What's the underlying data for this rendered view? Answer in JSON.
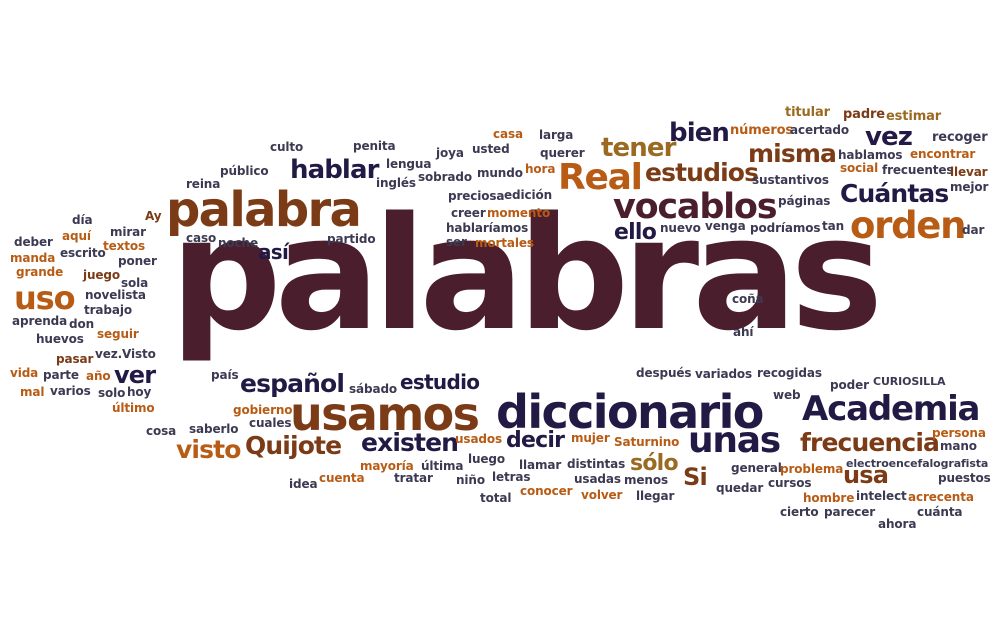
{
  "word_cloud": {
    "words": [
      {
        "text": "palabras",
        "color": "#4a1e2c"
      },
      {
        "text": "palabra",
        "color": "#7b3b16"
      },
      {
        "text": "usamos",
        "color": "#7b3b16"
      },
      {
        "text": "diccionario",
        "color": "#221a45"
      },
      {
        "text": "Academia",
        "color": "#221a45"
      },
      {
        "text": "vocablos",
        "color": "#4a1e2c"
      },
      {
        "text": "Real",
        "color": "#b85b14"
      },
      {
        "text": "orden",
        "color": "#b85b14"
      },
      {
        "text": "unas",
        "color": "#221a45"
      },
      {
        "text": "uso",
        "color": "#b85b14"
      },
      {
        "text": "hablar",
        "color": "#221a45"
      },
      {
        "text": "misma",
        "color": "#7b3b16"
      },
      {
        "text": "estudios",
        "color": "#7b3b16"
      },
      {
        "text": "Cuántas",
        "color": "#221a45"
      },
      {
        "text": "tener",
        "color": "#9a6a22"
      },
      {
        "text": "bien",
        "color": "#221a45"
      },
      {
        "text": "vez",
        "color": "#221a45"
      },
      {
        "text": "frecuencia",
        "color": "#7b3b16"
      },
      {
        "text": "existen",
        "color": "#221a45"
      },
      {
        "text": "visto",
        "color": "#b85b14"
      },
      {
        "text": "Quijote",
        "color": "#7b3b16"
      },
      {
        "text": "español",
        "color": "#221a45"
      },
      {
        "text": "estudio",
        "color": "#221a45"
      },
      {
        "text": "decir",
        "color": "#221a45"
      },
      {
        "text": "ver",
        "color": "#221a45"
      },
      {
        "text": "así",
        "color": "#221a45"
      },
      {
        "text": "ello",
        "color": "#221a45"
      },
      {
        "text": "sólo",
        "color": "#9a6a22"
      },
      {
        "text": "usa",
        "color": "#7b3b16"
      },
      {
        "text": "Si",
        "color": "#7b3b16"
      },
      {
        "text": "titular",
        "color": "#9a6a22"
      },
      {
        "text": "padre",
        "color": "#7b3b16"
      },
      {
        "text": "estimar",
        "color": "#9a6a22"
      },
      {
        "text": "números",
        "color": "#b85b14"
      },
      {
        "text": "acertado",
        "color": "#3c3a52"
      },
      {
        "text": "recoger",
        "color": "#3c3a52"
      },
      {
        "text": "culto",
        "color": "#3c3a52"
      },
      {
        "text": "penita",
        "color": "#3c3a52"
      },
      {
        "text": "casa",
        "color": "#b85b14"
      },
      {
        "text": "larga",
        "color": "#3c3a52"
      },
      {
        "text": "público",
        "color": "#3c3a52"
      },
      {
        "text": "lengua",
        "color": "#3c3a52"
      },
      {
        "text": "joya",
        "color": "#3c3a52"
      },
      {
        "text": "usted",
        "color": "#3c3a52"
      },
      {
        "text": "querer",
        "color": "#3c3a52"
      },
      {
        "text": "hablamos",
        "color": "#3c3a52"
      },
      {
        "text": "encontrar",
        "color": "#b85b14"
      },
      {
        "text": "inglés",
        "color": "#3c3a52"
      },
      {
        "text": "sobrado",
        "color": "#3c3a52"
      },
      {
        "text": "mundo",
        "color": "#3c3a52"
      },
      {
        "text": "hora",
        "color": "#b85b14"
      },
      {
        "text": "social",
        "color": "#b85b14"
      },
      {
        "text": "frecuentes",
        "color": "#3c3a52"
      },
      {
        "text": "llevar",
        "color": "#7b3b16"
      },
      {
        "text": "reina",
        "color": "#3c3a52"
      },
      {
        "text": "sustantivos",
        "color": "#3c3a52"
      },
      {
        "text": "mejor",
        "color": "#3c3a52"
      },
      {
        "text": "preciosa",
        "color": "#3c3a52"
      },
      {
        "text": "edición",
        "color": "#3c3a52"
      },
      {
        "text": "páginas",
        "color": "#3c3a52"
      },
      {
        "text": "día",
        "color": "#3c3a52"
      },
      {
        "text": "Ay",
        "color": "#7b3b16"
      },
      {
        "text": "creer",
        "color": "#3c3a52"
      },
      {
        "text": "momento",
        "color": "#b85b14"
      },
      {
        "text": "aquí",
        "color": "#b85b14"
      },
      {
        "text": "mirar",
        "color": "#3c3a52"
      },
      {
        "text": "hablaríamos",
        "color": "#3c3a52"
      },
      {
        "text": "nuevo",
        "color": "#3c3a52"
      },
      {
        "text": "venga",
        "color": "#3c3a52"
      },
      {
        "text": "podríamos",
        "color": "#3c3a52"
      },
      {
        "text": "tan",
        "color": "#3c3a52"
      },
      {
        "text": "dar",
        "color": "#3c3a52"
      },
      {
        "text": "deber",
        "color": "#3c3a52"
      },
      {
        "text": "escrito",
        "color": "#3c3a52"
      },
      {
        "text": "caso",
        "color": "#3c3a52"
      },
      {
        "text": "noche",
        "color": "#3c3a52"
      },
      {
        "text": "partido",
        "color": "#3c3a52"
      },
      {
        "text": "ser",
        "color": "#3c3a52"
      },
      {
        "text": "mortales",
        "color": "#b85b14"
      },
      {
        "text": "manda",
        "color": "#b85b14"
      },
      {
        "text": "textos",
        "color": "#b85b14"
      },
      {
        "text": "grande",
        "color": "#b85b14"
      },
      {
        "text": "poner",
        "color": "#3c3a52"
      },
      {
        "text": "juego",
        "color": "#7b3b16"
      },
      {
        "text": "sola",
        "color": "#3c3a52"
      },
      {
        "text": "novelista",
        "color": "#3c3a52"
      },
      {
        "text": "trabajo",
        "color": "#3c3a52"
      },
      {
        "text": "aprenda",
        "color": "#3c3a52"
      },
      {
        "text": "don",
        "color": "#3c3a52"
      },
      {
        "text": "coña",
        "color": "#3c3a52"
      },
      {
        "text": "seguir",
        "color": "#b85b14"
      },
      {
        "text": "huevos",
        "color": "#3c3a52"
      },
      {
        "text": "ahí",
        "color": "#3c3a52"
      },
      {
        "text": "pasar",
        "color": "#7b3b16"
      },
      {
        "text": "vez.Visto",
        "color": "#3c3a52"
      },
      {
        "text": "vida",
        "color": "#b85b14"
      },
      {
        "text": "parte",
        "color": "#3c3a52"
      },
      {
        "text": "año",
        "color": "#b85b14"
      },
      {
        "text": "país",
        "color": "#3c3a52"
      },
      {
        "text": "recogidas",
        "color": "#3c3a52"
      },
      {
        "text": "CURIOSILLA",
        "color": "#3c3a52"
      },
      {
        "text": "mal",
        "color": "#b85b14"
      },
      {
        "text": "varios",
        "color": "#3c3a52"
      },
      {
        "text": "solo",
        "color": "#3c3a52"
      },
      {
        "text": "hoy",
        "color": "#3c3a52"
      },
      {
        "text": "sábado",
        "color": "#3c3a52"
      },
      {
        "text": "después",
        "color": "#3c3a52"
      },
      {
        "text": "variados",
        "color": "#3c3a52"
      },
      {
        "text": "poder",
        "color": "#3c3a52"
      },
      {
        "text": "último",
        "color": "#b85b14"
      },
      {
        "text": "web",
        "color": "#3c3a52"
      },
      {
        "text": "gobierno",
        "color": "#b85b14"
      },
      {
        "text": "cuales",
        "color": "#3c3a52"
      },
      {
        "text": "persona",
        "color": "#b85b14"
      },
      {
        "text": "cosa",
        "color": "#3c3a52"
      },
      {
        "text": "saberlo",
        "color": "#3c3a52"
      },
      {
        "text": "usados",
        "color": "#b85b14"
      },
      {
        "text": "mujer",
        "color": "#b85b14"
      },
      {
        "text": "Saturnino",
        "color": "#b85b14"
      },
      {
        "text": "mano",
        "color": "#3c3a52"
      },
      {
        "text": "luego",
        "color": "#3c3a52"
      },
      {
        "text": "mayoría",
        "color": "#b85b14"
      },
      {
        "text": "última",
        "color": "#3c3a52"
      },
      {
        "text": "llamar",
        "color": "#3c3a52"
      },
      {
        "text": "distintas",
        "color": "#3c3a52"
      },
      {
        "text": "general",
        "color": "#3c3a52"
      },
      {
        "text": "problema",
        "color": "#b85b14"
      },
      {
        "text": "electroencefalografista",
        "color": "#3c3a52"
      },
      {
        "text": "idea",
        "color": "#3c3a52"
      },
      {
        "text": "cuenta",
        "color": "#b85b14"
      },
      {
        "text": "tratar",
        "color": "#3c3a52"
      },
      {
        "text": "niño",
        "color": "#3c3a52"
      },
      {
        "text": "letras",
        "color": "#3c3a52"
      },
      {
        "text": "usadas",
        "color": "#3c3a52"
      },
      {
        "text": "menos",
        "color": "#3c3a52"
      },
      {
        "text": "quedar",
        "color": "#3c3a52"
      },
      {
        "text": "cursos",
        "color": "#3c3a52"
      },
      {
        "text": "puestos",
        "color": "#3c3a52"
      },
      {
        "text": "total",
        "color": "#3c3a52"
      },
      {
        "text": "conocer",
        "color": "#b85b14"
      },
      {
        "text": "volver",
        "color": "#b85b14"
      },
      {
        "text": "llegar",
        "color": "#3c3a52"
      },
      {
        "text": "hombre",
        "color": "#b85b14"
      },
      {
        "text": "intelect",
        "color": "#3c3a52"
      },
      {
        "text": "acrecenta",
        "color": "#b85b14"
      },
      {
        "text": "cierto",
        "color": "#3c3a52"
      },
      {
        "text": "parecer",
        "color": "#3c3a52"
      },
      {
        "text": "cuánta",
        "color": "#3c3a52"
      },
      {
        "text": "ahora",
        "color": "#3c3a52"
      }
    ]
  }
}
